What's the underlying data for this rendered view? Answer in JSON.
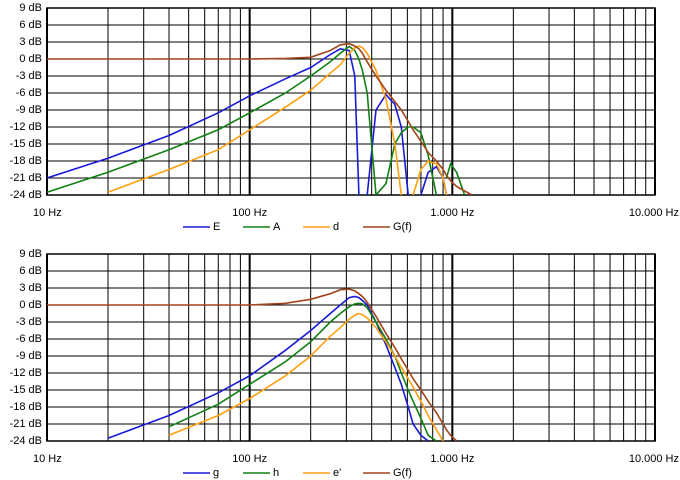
{
  "chart_data": [
    {
      "type": "line",
      "xscale": "log",
      "grid": true,
      "legend": "bottom",
      "x": [
        10,
        20,
        40,
        70,
        100,
        150,
        200,
        250,
        280,
        310,
        330,
        346,
        360,
        380,
        420,
        470,
        520,
        560,
        606,
        640,
        700,
        760,
        834,
        900,
        935,
        980,
        1050,
        1150,
        1250
      ],
      "xlim": [
        10,
        10000
      ],
      "xticks": [
        {
          "value": 10,
          "label": "10 Hz"
        },
        {
          "value": 100,
          "label": "100 Hz"
        },
        {
          "value": 1000,
          "label": "1.000 Hz"
        },
        {
          "value": 10000,
          "label": "10.000 Hz"
        }
      ],
      "xminorticks": [
        20,
        30,
        40,
        50,
        60,
        70,
        80,
        90,
        200,
        300,
        400,
        500,
        600,
        700,
        800,
        900,
        2000,
        3000,
        4000,
        5000,
        6000,
        7000,
        8000,
        9000
      ],
      "ylim": [
        -24,
        9
      ],
      "yticks": [
        {
          "value": 9,
          "label": "9 dB"
        },
        {
          "value": 6,
          "label": "6 dB"
        },
        {
          "value": 3,
          "label": "3 dB"
        },
        {
          "value": 0,
          "label": "0 dB"
        },
        {
          "value": -3,
          "label": "-3 dB"
        },
        {
          "value": -6,
          "label": "-6 dB"
        },
        {
          "value": -9,
          "label": "-9 dB"
        },
        {
          "value": -12,
          "label": "-12 dB"
        },
        {
          "value": -15,
          "label": "-15 dB"
        },
        {
          "value": -18,
          "label": "-18 dB"
        },
        {
          "value": -21,
          "label": "-21 dB"
        },
        {
          "value": -24,
          "label": "-24 dB"
        }
      ],
      "series": [
        {
          "name": "E",
          "color": "#1a1ad6",
          "values": [
            -21,
            -17.5,
            -13.5,
            -9.5,
            -6.5,
            -3.5,
            -1.5,
            0.8,
            1.8,
            1.5,
            -3,
            -24,
            null,
            -24,
            -9,
            -6.3,
            -8,
            -12,
            -24,
            null,
            -24,
            -20,
            -19,
            -21,
            -24,
            null,
            null,
            null,
            null
          ]
        },
        {
          "name": "A",
          "color": "#128012",
          "values": [
            -23.5,
            -20,
            -16,
            -12.5,
            -9.5,
            -6,
            -3,
            -0.5,
            1,
            2.2,
            1.5,
            0,
            -2,
            -6,
            -24,
            -22,
            -15,
            -13,
            -12,
            -12,
            -13,
            -17,
            -24,
            null,
            -21,
            -18.5,
            -20,
            -24,
            null
          ]
        },
        {
          "name": "d",
          "color": "#ffa010",
          "values": [
            null,
            -23.5,
            -19.5,
            -16,
            -12.5,
            -8.5,
            -5.5,
            -2.5,
            -1,
            1,
            2,
            2.3,
            2,
            1,
            -2,
            -7,
            -15,
            -24,
            null,
            -24,
            -19.5,
            -18,
            -18.5,
            -21,
            -24,
            null,
            null,
            null,
            null
          ]
        },
        {
          "name": "G(f)",
          "color": "#a0451c",
          "values": [
            0,
            0,
            0,
            0,
            0,
            0.1,
            0.3,
            1.5,
            2.5,
            2.7,
            2.3,
            1.8,
            1,
            -0.5,
            -3,
            -5.5,
            -7.5,
            -9,
            -11,
            -12.5,
            -14.5,
            -16.5,
            -18,
            -19.5,
            -20.5,
            -21.5,
            -22.5,
            -23.3,
            -24
          ]
        }
      ]
    },
    {
      "type": "line",
      "xscale": "log",
      "grid": true,
      "legend": "bottom",
      "x": [
        10,
        20,
        40,
        70,
        100,
        150,
        200,
        250,
        280,
        310,
        330,
        346,
        360,
        380,
        420,
        470,
        520,
        560,
        606,
        640,
        700,
        760,
        834,
        900,
        935,
        980,
        1050,
        1150,
        1250
      ],
      "xlim": [
        10,
        10000
      ],
      "xticks": [
        {
          "value": 10,
          "label": "10 Hz"
        },
        {
          "value": 100,
          "label": "100 Hz"
        },
        {
          "value": 1000,
          "label": "1.000 Hz"
        },
        {
          "value": 10000,
          "label": "10.000 Hz"
        }
      ],
      "xminorticks": [
        20,
        30,
        40,
        50,
        60,
        70,
        80,
        90,
        200,
        300,
        400,
        500,
        600,
        700,
        800,
        900,
        2000,
        3000,
        4000,
        5000,
        6000,
        7000,
        8000,
        9000
      ],
      "ylim": [
        -24,
        9
      ],
      "yticks": [
        {
          "value": 9,
          "label": "9 dB"
        },
        {
          "value": 6,
          "label": "6 dB"
        },
        {
          "value": 3,
          "label": "3 dB"
        },
        {
          "value": 0,
          "label": "0 dB"
        },
        {
          "value": -3,
          "label": "-3 dB"
        },
        {
          "value": -6,
          "label": "-6 dB"
        },
        {
          "value": -9,
          "label": "-9 dB"
        },
        {
          "value": -12,
          "label": "-12 dB"
        },
        {
          "value": -15,
          "label": "-15 dB"
        },
        {
          "value": -18,
          "label": "-18 dB"
        },
        {
          "value": -21,
          "label": "-21 dB"
        },
        {
          "value": -24,
          "label": "-24 dB"
        }
      ],
      "series": [
        {
          "name": "g",
          "color": "#1a1ad6",
          "values": [
            null,
            -23.5,
            -19.5,
            -15.5,
            -12.5,
            -8,
            -4.5,
            -1.5,
            0,
            1.3,
            1.5,
            1.3,
            0.8,
            0,
            -3,
            -7,
            -11,
            -14,
            -18,
            -21,
            -23,
            -24,
            null,
            null,
            null,
            null,
            null,
            null,
            null
          ]
        },
        {
          "name": "h",
          "color": "#128012",
          "values": [
            null,
            null,
            -21.5,
            -17.5,
            -14,
            -10,
            -6.5,
            -3,
            -1.5,
            -0.3,
            0.2,
            0.3,
            0.2,
            -0.5,
            -3,
            -6,
            -9,
            -12,
            -15,
            -17,
            -20,
            -23,
            -24,
            null,
            null,
            null,
            null,
            null,
            null
          ]
        },
        {
          "name": "e'",
          "color": "#ffa010",
          "values": [
            null,
            null,
            -23,
            -19.5,
            -16.5,
            -12.5,
            -9,
            -5.5,
            -4,
            -2.5,
            -1.8,
            -1.5,
            -1.7,
            -2.3,
            -4,
            -6.5,
            -9,
            -11,
            -13,
            -14.5,
            -17,
            -19.5,
            -22,
            -24,
            null,
            null,
            null,
            null,
            null
          ]
        },
        {
          "name": "G(f)",
          "color": "#a0451c",
          "values": [
            0,
            0,
            0,
            0,
            0,
            0.3,
            1,
            2,
            2.7,
            2.8,
            2.5,
            2,
            1.5,
            0.5,
            -2,
            -5,
            -7.5,
            -9.5,
            -11.5,
            -13,
            -15,
            -17,
            -19,
            -21,
            -22,
            -23,
            -24,
            null,
            null
          ]
        }
      ]
    }
  ]
}
